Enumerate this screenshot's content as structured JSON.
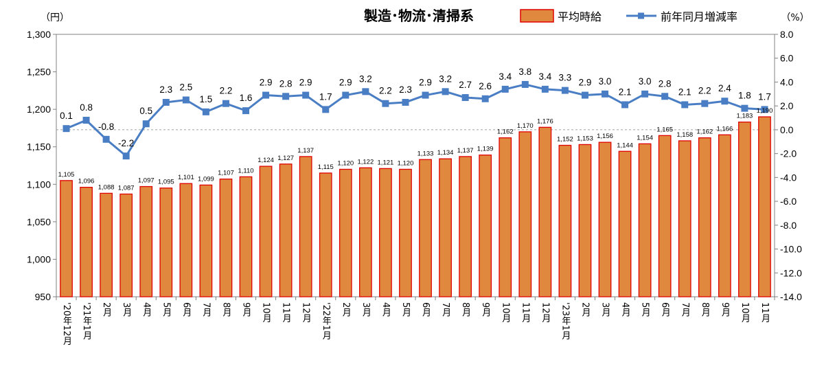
{
  "chart_data": {
    "type": "bar+line",
    "title": "製造･物流･清掃系",
    "left_axis_unit": "（円）",
    "right_axis_unit": "（%）",
    "categories": [
      "'20年12月",
      "'21年1月",
      "2月",
      "3月",
      "4月",
      "5月",
      "6月",
      "7月",
      "8月",
      "9月",
      "10月",
      "11月",
      "12月",
      "'22年1月",
      "2月",
      "3月",
      "4月",
      "5月",
      "6月",
      "7月",
      "8月",
      "9月",
      "10月",
      "11月",
      "12月",
      "'23年1月",
      "2月",
      "3月",
      "4月",
      "5月",
      "6月",
      "7月",
      "8月",
      "9月",
      "10月",
      "11月"
    ],
    "series": [
      {
        "name": "平均時給",
        "type": "bar",
        "axis": "left",
        "values": [
          1105,
          1096,
          1088,
          1087,
          1097,
          1095,
          1101,
          1099,
          1107,
          1110,
          1124,
          1127,
          1137,
          1115,
          1120,
          1122,
          1121,
          1120,
          1133,
          1134,
          1137,
          1139,
          1162,
          1170,
          1176,
          1152,
          1153,
          1156,
          1144,
          1154,
          1165,
          1158,
          1162,
          1166,
          1183,
          1190
        ],
        "labels": [
          "1,105",
          "1,096",
          "1,088",
          "1,087",
          "1,097",
          "1,095",
          "1,101",
          "1,099",
          "1,107",
          "1,110",
          "1,124",
          "1,127",
          "1,137",
          "1,115",
          "1,120",
          "1,122",
          "1,121",
          "1,120",
          "1,133",
          "1,134",
          "1,137",
          "1,139",
          "1,162",
          "1,170",
          "1,176",
          "1,152",
          "1,153",
          "1,156",
          "1,144",
          "1,154",
          "1,165",
          "1,158",
          "1,162",
          "1,166",
          "1,183",
          "1,190"
        ]
      },
      {
        "name": "前年同月増減率",
        "type": "line",
        "axis": "right",
        "values": [
          0.1,
          0.8,
          -0.8,
          -2.2,
          0.5,
          2.3,
          2.5,
          1.5,
          2.2,
          1.6,
          2.9,
          2.8,
          2.9,
          1.7,
          2.9,
          3.2,
          2.2,
          2.3,
          2.9,
          3.2,
          2.7,
          2.6,
          3.4,
          3.8,
          3.4,
          3.3,
          2.9,
          3.0,
          2.1,
          3.0,
          2.8,
          2.1,
          2.2,
          2.4,
          1.8,
          1.7
        ],
        "labels": [
          "0.1",
          "0.8",
          "-0.8",
          "-2.2",
          "0.5",
          "2.3",
          "2.5",
          "1.5",
          "2.2",
          "1.6",
          "2.9",
          "2.8",
          "2.9",
          "1.7",
          "2.9",
          "3.2",
          "2.2",
          "2.3",
          "2.9",
          "3.2",
          "2.7",
          "2.6",
          "3.4",
          "3.8",
          "3.4",
          "3.3",
          "2.9",
          "3.0",
          "2.1",
          "3.0",
          "2.8",
          "2.1",
          "2.2",
          "2.4",
          "1.8",
          "1.7"
        ]
      }
    ],
    "left_axis": {
      "min": 950,
      "max": 1300,
      "step": 50,
      "tick_labels": [
        "950",
        "1,000",
        "1,050",
        "1,100",
        "1,150",
        "1,200",
        "1,250",
        "1,300"
      ]
    },
    "right_axis": {
      "min": -14,
      "max": 8,
      "step": 2,
      "tick_labels": [
        "-14.0",
        "-12.0",
        "-10.0",
        "-8.0",
        "-6.0",
        "-4.0",
        "-2.0",
        "0.0",
        "2.0",
        "4.0",
        "6.0",
        "8.0"
      ]
    },
    "zero_reference_line": true,
    "grid": false,
    "legend_position": "top-right",
    "colors": {
      "bar_fill": "#E0893E",
      "bar_stroke": "#E00000",
      "line": "#4A7EC4"
    }
  }
}
